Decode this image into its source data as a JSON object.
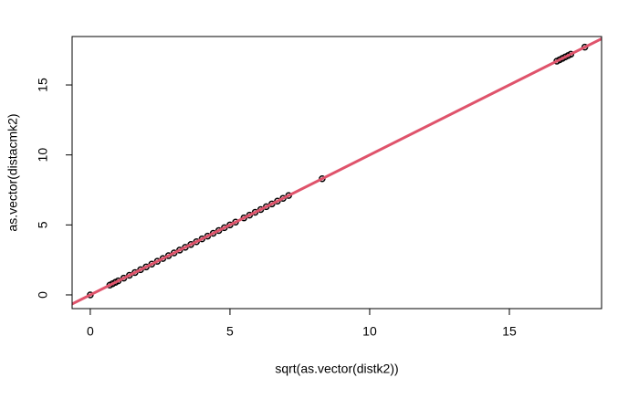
{
  "chart_data": {
    "type": "scatter",
    "x_label": "sqrt(as.vector(distk2))",
    "y_label": "as.vector(distacmk2)",
    "xlim": [
      -0.65,
      18.3
    ],
    "ylim": [
      -0.98,
      18.46
    ],
    "xticks": [
      0,
      5,
      10,
      15
    ],
    "yticks": [
      0,
      5,
      10,
      15
    ],
    "grid": false,
    "color": "#000000",
    "x": [
      0,
      0.7,
      0.8,
      0.9,
      1.0,
      1.2,
      1.4,
      1.6,
      1.8,
      2.0,
      2.2,
      2.4,
      2.6,
      2.8,
      3.0,
      3.2,
      3.4,
      3.6,
      3.8,
      4.0,
      4.2,
      4.4,
      4.6,
      4.8,
      5.0,
      5.2,
      5.5,
      5.7,
      5.9,
      6.1,
      6.3,
      6.5,
      6.7,
      6.9,
      7.1,
      8.3,
      16.7,
      16.8,
      16.9,
      17.0,
      17.1,
      17.2,
      17.7
    ],
    "y": [
      0,
      0.7,
      0.8,
      0.9,
      1.0,
      1.2,
      1.4,
      1.6,
      1.8,
      2.0,
      2.2,
      2.4,
      2.6,
      2.8,
      3.0,
      3.2,
      3.4,
      3.6,
      3.8,
      4.0,
      4.2,
      4.4,
      4.6,
      4.8,
      5.0,
      5.2,
      5.5,
      5.7,
      5.9,
      6.1,
      6.3,
      6.5,
      6.7,
      6.9,
      7.1,
      8.3,
      16.7,
      16.8,
      16.9,
      17.0,
      17.1,
      17.2,
      17.7
    ],
    "reference_line": {
      "intercept": 0,
      "slope": 1,
      "color": "#DF536B"
    }
  }
}
